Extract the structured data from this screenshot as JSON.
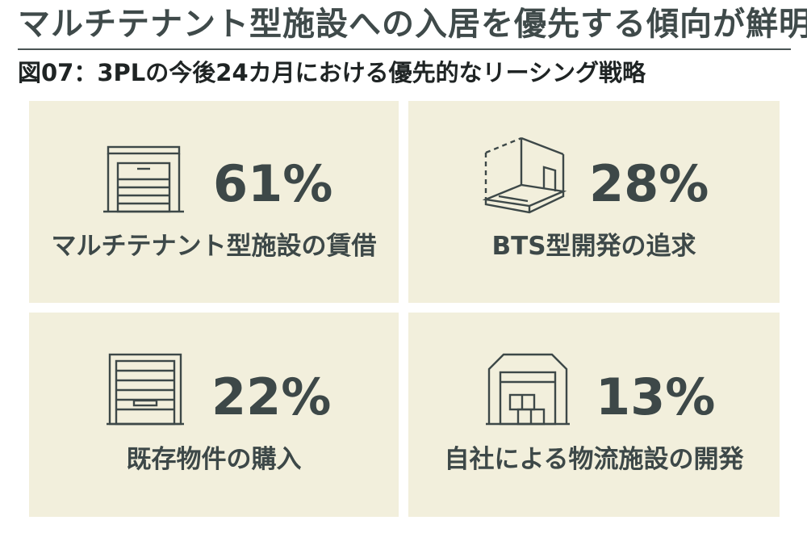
{
  "headline": "マルチテナント型施設への入居を優先する傾向が鮮明に",
  "subtitle": "図07：3PLの今後24カ月における優先的なリーシング戦略",
  "chart_data": {
    "type": "table",
    "categories": [
      "マルチテナント型施設の賃借",
      "BTS型開発の追求",
      "既存物件の購入",
      "自社による物流施設の開発"
    ],
    "values": [
      61,
      28,
      22,
      13
    ],
    "unit": "%"
  },
  "cards": [
    {
      "value": "61%",
      "label": "マルチテナント型施設の賃借",
      "icon": "warehouse-shutter-icon"
    },
    {
      "value": "28%",
      "label": "BTS型開発の追求",
      "icon": "build-to-suit-floor-icon"
    },
    {
      "value": "22%",
      "label": "既存物件の購入",
      "icon": "loading-door-icon"
    },
    {
      "value": "13%",
      "label": "自社による物流施設の開発",
      "icon": "logistics-facility-icon"
    }
  ],
  "colors": {
    "card_background": "#f2efdc",
    "text": "#3d4848",
    "rule": "#4a5454"
  }
}
